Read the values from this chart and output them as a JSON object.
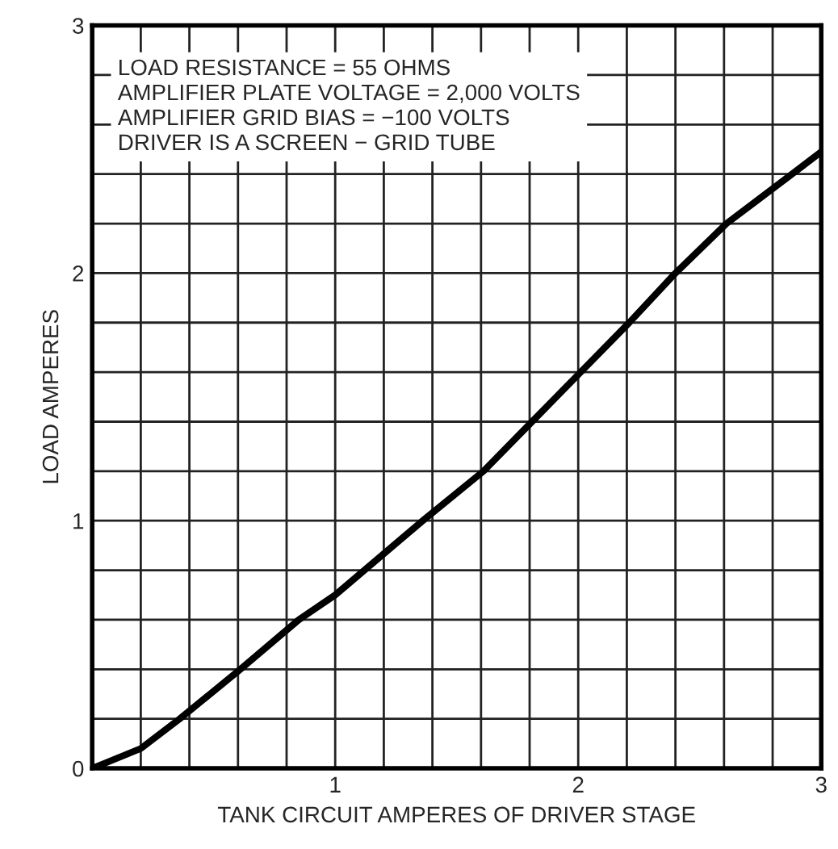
{
  "chart_data": {
    "type": "line",
    "xlabel": "TANK CIRCUIT AMPERES OF DRIVER STAGE",
    "ylabel": "LOAD AMPERES",
    "annotations": [
      "LOAD RESISTANCE = 55 OHMS",
      "AMPLIFIER PLATE VOLTAGE = 2,000 VOLTS",
      "AMPLIFIER GRID BIAS = −100 VOLTS",
      "DRIVER IS A SCREEN − GRID TUBE"
    ],
    "x": [
      0,
      0.2,
      0.36,
      0.61,
      0.85,
      1.0,
      1.36,
      1.61,
      1.81,
      2.01,
      2.21,
      2.4,
      2.61,
      2.88,
      3.0
    ],
    "series": [
      {
        "color": "#000000",
        "values": [
          0,
          0.08,
          0.2,
          0.4,
          0.6,
          0.7,
          1.0,
          1.2,
          1.4,
          1.6,
          1.8,
          2.0,
          2.2,
          2.4,
          2.49
        ]
      }
    ],
    "xlim": [
      0,
      3
    ],
    "ylim": [
      0,
      3
    ],
    "xticks": [
      {
        "value": 0,
        "label": null
      },
      {
        "value": 0.2,
        "label": null
      },
      {
        "value": 0.4,
        "label": null
      },
      {
        "value": 0.6,
        "label": null
      },
      {
        "value": 0.8,
        "label": null
      },
      1,
      {
        "value": 1.2,
        "label": null
      },
      {
        "value": 1.4,
        "label": null
      },
      {
        "value": 1.6,
        "label": null
      },
      {
        "value": 1.8,
        "label": null
      },
      2,
      {
        "value": 2.2,
        "label": null
      },
      {
        "value": 2.4,
        "label": null
      },
      {
        "value": 2.6,
        "label": null
      },
      {
        "value": 2.8,
        "label": null
      },
      3
    ],
    "yticks": [
      0,
      {
        "value": 0.2,
        "label": null
      },
      {
        "value": 0.4,
        "label": null
      },
      {
        "value": 0.6,
        "label": null
      },
      {
        "value": 0.8,
        "label": null
      },
      1,
      {
        "value": 1.2,
        "label": null
      },
      {
        "value": 1.4,
        "label": null
      },
      {
        "value": 1.6,
        "label": null
      },
      {
        "value": 1.8,
        "label": null
      },
      2,
      {
        "value": 2.2,
        "label": null
      },
      {
        "value": 2.4,
        "label": null
      },
      {
        "value": 2.6,
        "label": null
      },
      {
        "value": 2.8,
        "label": null
      },
      3
    ],
    "grid": true,
    "marker": "none",
    "line_style": "solid"
  }
}
